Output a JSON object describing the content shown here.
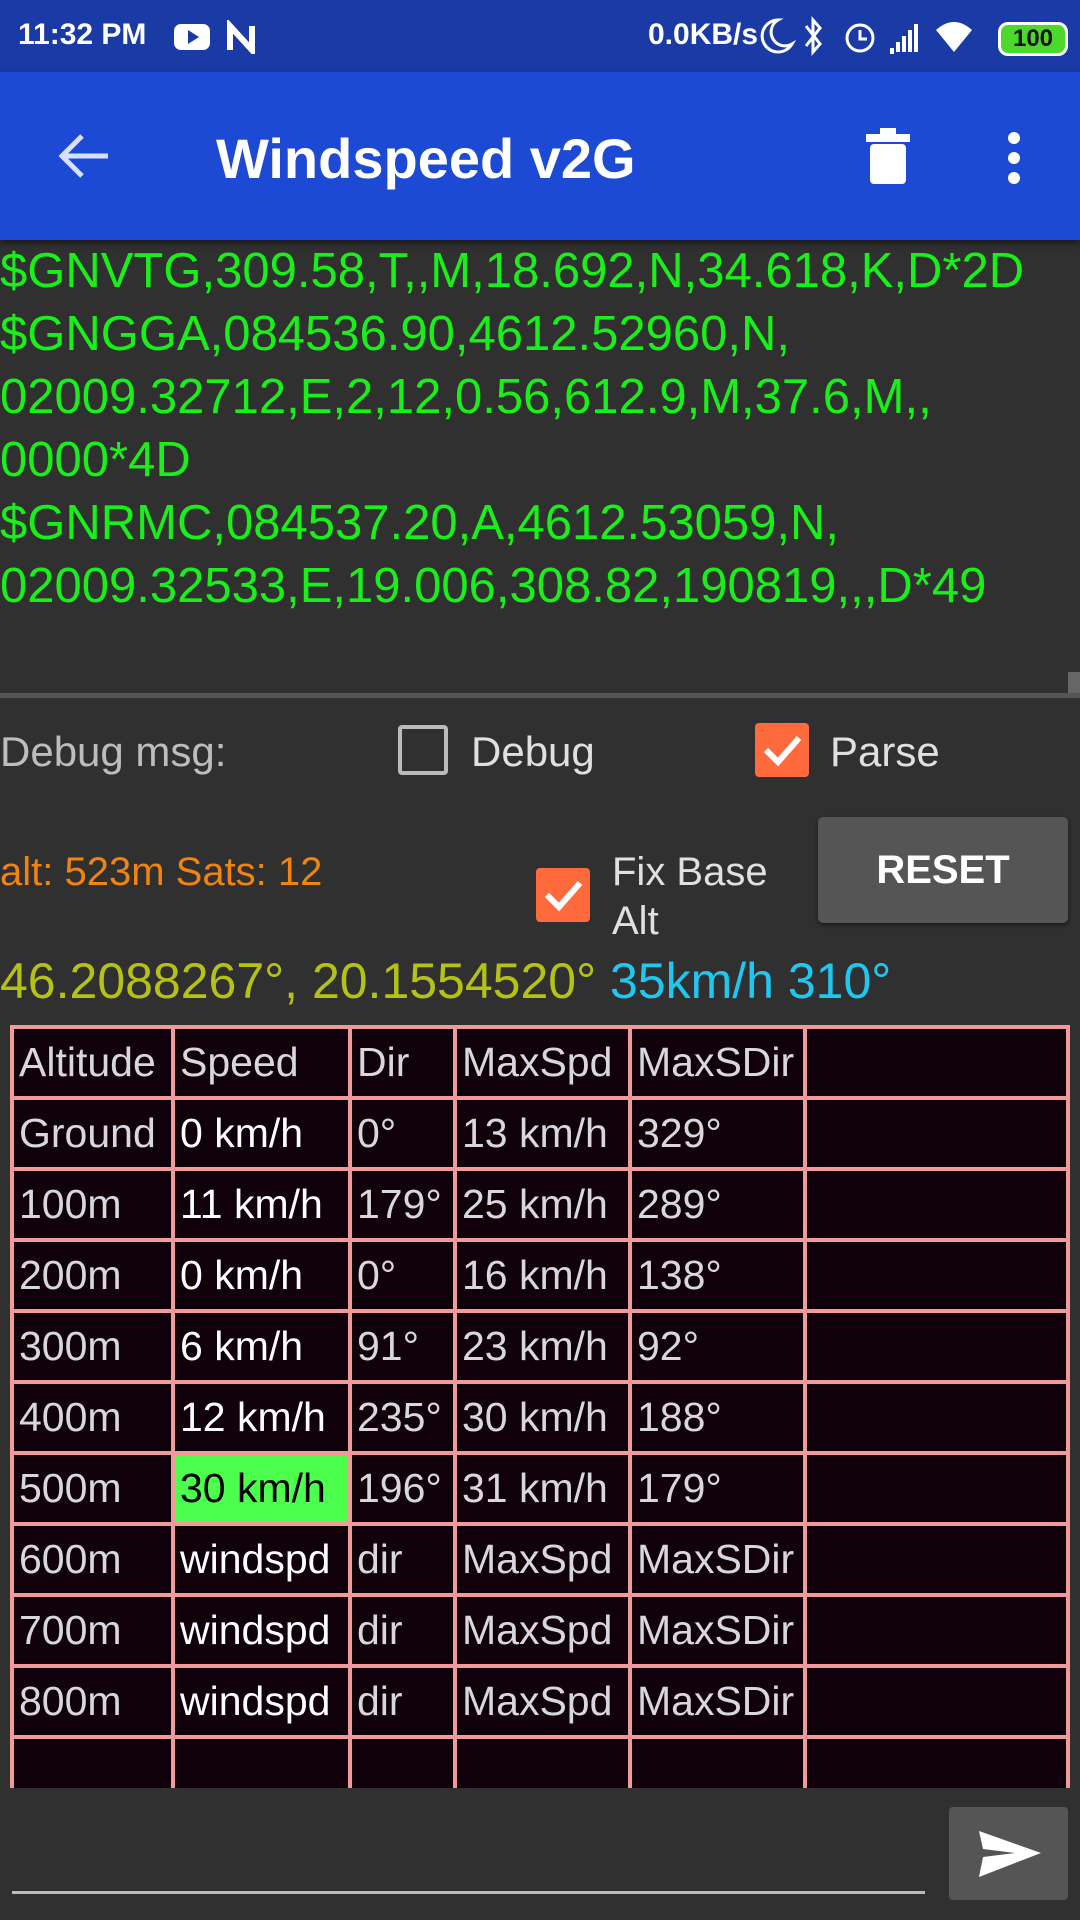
{
  "status_bar": {
    "time": "11:32 PM",
    "net_speed": "0.0KB/s",
    "battery": "100"
  },
  "app_bar": {
    "title": "Windspeed v2G"
  },
  "terminal": {
    "lines": [
      "$GNVTG,309.58,T,,M,18.692,N,34.618,K,D*2D",
      "$GNGGA,084536.90,4612.52960,N,",
      "02009.32712,E,2,12,0.56,612.9,M,37.6,M,,",
      "0000*4D",
      "$GNRMC,084537.20,A,4612.53059,N,",
      "02009.32533,E,19.006,308.82,190819,,,D*49"
    ]
  },
  "controls": {
    "debug_label": "Debug msg:",
    "debug_checkbox": "Debug",
    "parse_checkbox": "Parse",
    "alt_info": "alt: 523m Sats: 12",
    "fix_base_line1": "Fix Base",
    "fix_base_line2": "Alt",
    "reset_button": "RESET"
  },
  "position": {
    "coords": "46.2088267°, 20.1554520°",
    "speed_dir": "35km/h 310°"
  },
  "table": {
    "header": [
      "Altitude",
      "Speed",
      "Dir",
      "MaxSpd",
      "MaxSDir"
    ],
    "rows": [
      [
        "Ground",
        "0 km/h",
        "0°",
        "13 km/h",
        "329°"
      ],
      [
        "100m",
        "11 km/h",
        "179°",
        "25 km/h",
        "289°"
      ],
      [
        "200m",
        "0 km/h",
        "0°",
        "16 km/h",
        "138°"
      ],
      [
        "300m",
        "6 km/h",
        "91°",
        "23 km/h",
        "92°"
      ],
      [
        "400m",
        "12 km/h",
        "235°",
        "30 km/h",
        "188°"
      ],
      [
        "500m",
        "30 km/h",
        "196°",
        "31 km/h",
        "179°"
      ],
      [
        "600m",
        "windspd",
        "dir",
        "MaxSpd",
        "MaxSDir"
      ],
      [
        "700m",
        "windspd",
        "dir",
        "MaxSpd",
        "MaxSDir"
      ],
      [
        "800m",
        "windspd",
        "dir",
        "MaxSpd",
        "MaxSDir"
      ]
    ]
  }
}
